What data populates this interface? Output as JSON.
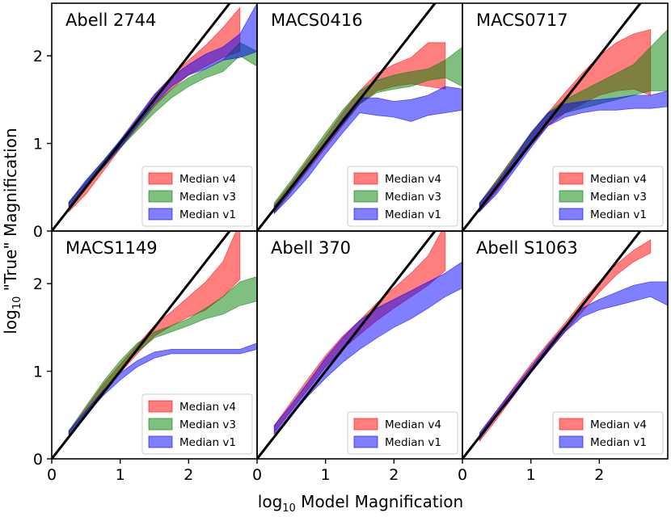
{
  "chart_data": {
    "type": "area",
    "xlabel_main": "log",
    "xlabel_sub": "10",
    "xlabel_rest": " Model Magnification",
    "ylabel_main": "log",
    "ylabel_sub": "10",
    "ylabel_rest": " \"True\" Magnification",
    "xlim": [
      0,
      3
    ],
    "ylim": [
      0,
      2.6
    ],
    "xticks": [
      "0",
      "1",
      "2"
    ],
    "yticks": [
      "0",
      "1",
      "2"
    ],
    "colors": {
      "Median v4": "#ff0000",
      "Median v3": "#008000",
      "Median v1": "#0000ff"
    },
    "panels": [
      {
        "title": "Abell 2744",
        "legend": [
          "Median v4",
          "Median v3",
          "Median v1"
        ],
        "series": [
          {
            "name": "Median v4",
            "x": [
              0.25,
              0.5,
              0.75,
              1.0,
              1.25,
              1.5,
              1.75,
              2.0,
              2.25,
              2.5,
              2.75
            ],
            "lower": [
              0.22,
              0.42,
              0.68,
              0.94,
              1.18,
              1.42,
              1.62,
              1.78,
              1.88,
              1.98,
              2.05
            ],
            "upper": [
              0.33,
              0.55,
              0.78,
              1.03,
              1.28,
              1.55,
              1.77,
              1.95,
              2.12,
              2.32,
              2.55
            ]
          },
          {
            "name": "Median v3",
            "x": [
              0.25,
              0.5,
              0.75,
              1.0,
              1.25,
              1.5,
              1.75,
              2.0,
              2.25,
              2.5,
              2.75,
              3.0
            ],
            "lower": [
              0.26,
              0.5,
              0.72,
              0.95,
              1.15,
              1.35,
              1.52,
              1.65,
              1.75,
              1.82,
              2.0,
              1.88
            ],
            "upper": [
              0.33,
              0.57,
              0.8,
              1.03,
              1.25,
              1.45,
              1.62,
              1.75,
              1.85,
              1.95,
              2.15,
              2.05
            ]
          },
          {
            "name": "Median v1",
            "x": [
              0.25,
              0.5,
              0.75,
              1.0,
              1.25,
              1.5,
              1.75,
              2.0,
              2.25,
              2.5,
              2.75,
              3.0
            ],
            "lower": [
              0.25,
              0.52,
              0.73,
              0.95,
              1.2,
              1.45,
              1.65,
              1.78,
              1.85,
              1.95,
              1.98,
              2.05
            ],
            "upper": [
              0.33,
              0.58,
              0.8,
              1.04,
              1.3,
              1.56,
              1.76,
              1.9,
              2.02,
              2.1,
              2.25,
              2.6
            ]
          }
        ]
      },
      {
        "title": "MACS0416",
        "legend": [
          "Median v4",
          "Median v3",
          "Median v1"
        ],
        "series": [
          {
            "name": "Median v4",
            "x": [
              0.25,
              0.5,
              0.75,
              1.0,
              1.25,
              1.5,
              1.75,
              2.0,
              2.25,
              2.5,
              2.75
            ],
            "lower": [
              0.2,
              0.45,
              0.7,
              0.95,
              1.2,
              1.45,
              1.6,
              1.65,
              1.68,
              1.65,
              1.62
            ],
            "upper": [
              0.3,
              0.55,
              0.82,
              1.08,
              1.35,
              1.6,
              1.8,
              1.9,
              1.98,
              2.15,
              2.15
            ]
          },
          {
            "name": "Median v3",
            "x": [
              0.25,
              0.5,
              0.75,
              1.0,
              1.25,
              1.5,
              1.75,
              2.0,
              2.25,
              2.5,
              2.75,
              3.0
            ],
            "lower": [
              0.22,
              0.46,
              0.72,
              0.98,
              1.22,
              1.45,
              1.58,
              1.62,
              1.65,
              1.72,
              1.75,
              1.65
            ],
            "upper": [
              0.32,
              0.58,
              0.85,
              1.12,
              1.38,
              1.6,
              1.72,
              1.78,
              1.82,
              1.85,
              1.95,
              2.1
            ]
          },
          {
            "name": "Median v1",
            "x": [
              0.25,
              0.5,
              0.75,
              1.0,
              1.25,
              1.5,
              1.75,
              2.0,
              2.25,
              2.5,
              2.75,
              3.0
            ],
            "lower": [
              0.2,
              0.4,
              0.62,
              0.88,
              1.12,
              1.35,
              1.32,
              1.3,
              1.25,
              1.32,
              1.35,
              1.38
            ],
            "upper": [
              0.28,
              0.5,
              0.76,
              1.02,
              1.28,
              1.52,
              1.52,
              1.48,
              1.5,
              1.55,
              1.65,
              1.62
            ]
          }
        ]
      },
      {
        "title": "MACS0717",
        "legend": [
          "Median v4",
          "Median v3",
          "Median v1"
        ],
        "series": [
          {
            "name": "Median v4",
            "x": [
              0.25,
              0.5,
              0.75,
              1.0,
              1.25,
              1.5,
              1.75,
              2.0,
              2.25,
              2.5,
              2.75
            ],
            "lower": [
              0.22,
              0.45,
              0.72,
              0.98,
              1.2,
              1.35,
              1.45,
              1.55,
              1.6,
              1.62,
              1.55
            ],
            "upper": [
              0.32,
              0.58,
              0.85,
              1.12,
              1.35,
              1.58,
              1.8,
              2.0,
              2.15,
              2.25,
              2.3
            ]
          },
          {
            "name": "Median v3",
            "x": [
              0.25,
              0.5,
              0.75,
              1.0,
              1.25,
              1.5,
              1.75,
              2.0,
              2.25,
              2.5,
              2.75,
              3.0
            ],
            "lower": [
              0.25,
              0.5,
              0.72,
              1.0,
              1.25,
              1.35,
              1.4,
              1.45,
              1.5,
              1.55,
              1.6,
              1.6
            ],
            "upper": [
              0.32,
              0.58,
              0.85,
              1.12,
              1.35,
              1.5,
              1.6,
              1.7,
              1.8,
              1.9,
              2.1,
              2.3
            ]
          },
          {
            "name": "Median v1",
            "x": [
              0.25,
              0.5,
              0.75,
              1.0,
              1.25,
              1.5,
              1.75,
              2.0,
              2.25,
              2.5,
              2.75,
              3.0
            ],
            "lower": [
              0.22,
              0.42,
              0.68,
              0.95,
              1.2,
              1.3,
              1.35,
              1.38,
              1.38,
              1.4,
              1.4,
              1.42
            ],
            "upper": [
              0.32,
              0.55,
              0.82,
              1.12,
              1.35,
              1.45,
              1.48,
              1.5,
              1.52,
              1.55,
              1.55,
              1.6
            ]
          }
        ]
      },
      {
        "title": "MACS1149",
        "legend": [
          "Median v4",
          "Median v3",
          "Median v1"
        ],
        "series": [
          {
            "name": "Median v4",
            "x": [
              0.25,
              0.5,
              0.75,
              1.0,
              1.25,
              1.5,
              1.75,
              2.0,
              2.25,
              2.5,
              2.75
            ],
            "lower": [
              0.25,
              0.5,
              0.75,
              0.98,
              1.2,
              1.4,
              1.52,
              1.62,
              1.7,
              1.85,
              2.05
            ],
            "upper": [
              0.32,
              0.58,
              0.85,
              1.08,
              1.3,
              1.52,
              1.68,
              1.85,
              2.02,
              2.25,
              2.7
            ]
          },
          {
            "name": "Median v3",
            "x": [
              0.25,
              0.5,
              0.75,
              1.0,
              1.25,
              1.5,
              1.75,
              2.0,
              2.25,
              2.5,
              2.75,
              3.0
            ],
            "lower": [
              0.25,
              0.52,
              0.78,
              1.02,
              1.22,
              1.38,
              1.45,
              1.52,
              1.6,
              1.65,
              1.75,
              1.8
            ],
            "upper": [
              0.32,
              0.6,
              0.88,
              1.12,
              1.32,
              1.45,
              1.52,
              1.6,
              1.72,
              1.85,
              2.02,
              2.08
            ]
          },
          {
            "name": "Median v1",
            "x": [
              0.25,
              0.5,
              0.75,
              1.0,
              1.25,
              1.5,
              1.75,
              2.0,
              2.25,
              2.5,
              2.75,
              3.0
            ],
            "lower": [
              0.25,
              0.5,
              0.72,
              0.9,
              1.05,
              1.15,
              1.2,
              1.2,
              1.2,
              1.2,
              1.2,
              1.25
            ],
            "upper": [
              0.32,
              0.55,
              0.78,
              0.98,
              1.12,
              1.22,
              1.25,
              1.25,
              1.25,
              1.25,
              1.25,
              1.32
            ]
          }
        ]
      },
      {
        "title": "Abell 370",
        "legend": [
          "Median v4",
          "Median v1"
        ],
        "series": [
          {
            "name": "Median v4",
            "x": [
              0.25,
              0.5,
              0.75,
              1.0,
              1.25,
              1.5,
              1.75,
              2.0,
              2.25,
              2.5,
              2.75
            ],
            "lower": [
              0.3,
              0.55,
              0.8,
              1.05,
              1.25,
              1.42,
              1.58,
              1.72,
              1.85,
              1.98,
              2.15
            ],
            "upper": [
              0.38,
              0.65,
              0.92,
              1.18,
              1.4,
              1.58,
              1.78,
              1.95,
              2.12,
              2.32,
              2.68
            ]
          },
          {
            "name": "Median v1",
            "x": [
              0.25,
              0.5,
              0.75,
              1.0,
              1.25,
              1.5,
              1.75,
              2.0,
              2.25,
              2.5,
              2.75,
              3.0
            ],
            "lower": [
              0.28,
              0.5,
              0.72,
              0.92,
              1.1,
              1.25,
              1.38,
              1.5,
              1.6,
              1.72,
              1.85,
              1.95
            ],
            "upper": [
              0.38,
              0.62,
              0.88,
              1.15,
              1.38,
              1.58,
              1.72,
              1.82,
              1.92,
              2.02,
              2.12,
              2.25
            ]
          }
        ]
      },
      {
        "title": "Abell S1063",
        "legend": [
          "Median v4",
          "Median v1"
        ],
        "series": [
          {
            "name": "Median v4",
            "x": [
              0.25,
              0.5,
              0.75,
              1.0,
              1.25,
              1.5,
              1.75,
              2.0,
              2.25,
              2.5,
              2.75
            ],
            "lower": [
              0.2,
              0.45,
              0.72,
              0.98,
              1.22,
              1.45,
              1.68,
              1.9,
              2.1,
              2.25,
              2.35
            ],
            "upper": [
              0.28,
              0.55,
              0.82,
              1.08,
              1.32,
              1.55,
              1.8,
              2.02,
              2.22,
              2.38,
              2.5
            ]
          },
          {
            "name": "Median v1",
            "x": [
              0.25,
              0.5,
              0.75,
              1.0,
              1.25,
              1.5,
              1.75,
              2.0,
              2.25,
              2.5,
              2.75,
              3.0
            ],
            "lower": [
              0.22,
              0.48,
              0.72,
              0.98,
              1.22,
              1.45,
              1.62,
              1.7,
              1.75,
              1.8,
              1.85,
              1.75
            ],
            "upper": [
              0.3,
              0.55,
              0.8,
              1.05,
              1.3,
              1.52,
              1.72,
              1.82,
              1.9,
              1.98,
              2.02,
              2.02
            ]
          }
        ]
      }
    ]
  }
}
